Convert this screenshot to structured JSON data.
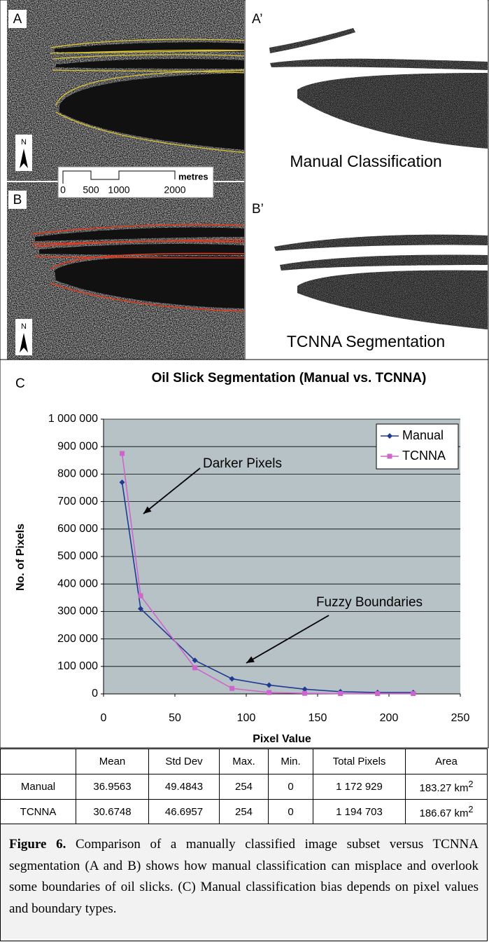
{
  "panels": {
    "a": "A",
    "a_prime": "A’",
    "a_prime_caption": "Manual Classification",
    "b": "B",
    "b_prime": "B’",
    "b_prime_caption": "TCNNA Segmentation",
    "north": "N"
  },
  "scale_bar": {
    "unit": "metres",
    "labels": [
      "0",
      "500",
      "1000",
      "2000"
    ]
  },
  "chart_data": {
    "type": "line",
    "panel_label": "C",
    "title": "Oil Slick Segmentation (Manual vs. TCNNA)",
    "x_label": "Pixel Value",
    "y_label": "No. of Pixels",
    "x": [
      13,
      26,
      64,
      90,
      116,
      141,
      166,
      192,
      217
    ],
    "series": [
      {
        "name": "Manual",
        "color": "#1f3a93",
        "marker": "diamond",
        "values": [
          770000,
          310000,
          122000,
          55000,
          32000,
          17000,
          8000,
          5000,
          5000
        ]
      },
      {
        "name": "TCNNA",
        "color": "#cc66cc",
        "marker": "square",
        "values": [
          875000,
          357000,
          95000,
          20000,
          5000,
          2000,
          1000,
          1000,
          1000
        ]
      }
    ],
    "xlim": [
      0,
      250
    ],
    "xticks": [
      0,
      50,
      100,
      150,
      200,
      250
    ],
    "ylim": [
      0,
      1000000
    ],
    "yticks": [
      0,
      {
        "value": 100000,
        "label": "100 000"
      },
      {
        "value": 200000,
        "label": "200 000"
      },
      {
        "value": 300000,
        "label": "300 000"
      },
      {
        "value": 400000,
        "label": "400 000"
      },
      {
        "value": 500000,
        "label": "500 000"
      },
      {
        "value": 600000,
        "label": "600 000"
      },
      {
        "value": 700000,
        "label": "700 000"
      },
      {
        "value": 800000,
        "label": "800 000"
      },
      {
        "value": 900000,
        "label": "900 000"
      },
      {
        "value": 1000000,
        "label": "1 000 000"
      }
    ],
    "grid": true,
    "legend": "upper right",
    "plot_background": "#b7c2c6",
    "annotations": [
      "Darker Pixels",
      "Fuzzy Boundaries"
    ]
  },
  "table": {
    "header": [
      "Mean",
      "Std Dev",
      "Max.",
      "Min.",
      "Total Pixels",
      "Area"
    ],
    "rows": [
      {
        "name": "Manual",
        "cells": [
          "36.9563",
          "49.4843",
          "254",
          "0",
          "1 172 929"
        ],
        "area": "183.27 km",
        "area_exponent": "2"
      },
      {
        "name": "TCNNA",
        "cells": [
          "30.6748",
          "46.6957",
          "254",
          "0",
          "1 194 703"
        ],
        "area": "186.67 km",
        "area_exponent": "2"
      }
    ]
  },
  "caption": {
    "label": "Figure 6.",
    "text": "Comparison of a manually classified image subset versus TCNNA segmentation (A and B) shows how manual classification can misplace and overlook some boundaries of oil slicks. (C) Manual classification bias depends on pixel values and boundary types."
  }
}
